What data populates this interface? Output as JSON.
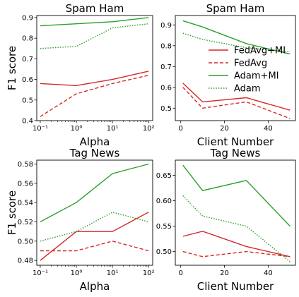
{
  "colors": {
    "red": "#d62728",
    "green": "#2ca02c"
  },
  "legend": {
    "placement": "right, inside top-right panel",
    "entries": [
      {
        "label": "FedAvg+MI",
        "color": "#d62728",
        "style": "solid"
      },
      {
        "label": "FedAvg",
        "color": "#d62728",
        "style": "dashed"
      },
      {
        "label": "Adam+MI",
        "color": "#2ca02c",
        "style": "solid"
      },
      {
        "label": "Adam",
        "color": "#2ca02c",
        "style": "dotted"
      }
    ]
  },
  "chart_data": [
    {
      "type": "line",
      "title": "Spam Ham",
      "xlabel": "Alpha",
      "ylabel": "F1 score",
      "xscale": "log",
      "xlim": [
        0.08,
        130
      ],
      "ylim": [
        0.4,
        0.91
      ],
      "xticks": [
        0.1,
        1,
        10,
        100
      ],
      "xtick_labels": [
        "10⁻¹",
        "10⁰",
        "10¹",
        "10²"
      ],
      "yticks": [
        0.4,
        0.5,
        0.6,
        0.7,
        0.8,
        0.9
      ],
      "ytick_labels": [
        "0.4",
        "0.5",
        "0.6",
        "0.7",
        "0.8",
        "0.9"
      ],
      "x": [
        0.1,
        1,
        10,
        100
      ],
      "series": [
        {
          "name": "FedAvg+MI",
          "values": [
            0.58,
            0.57,
            0.6,
            0.64
          ]
        },
        {
          "name": "FedAvg",
          "values": [
            0.42,
            0.53,
            0.58,
            0.62
          ]
        },
        {
          "name": "Adam+MI",
          "values": [
            0.86,
            0.87,
            0.88,
            0.9
          ]
        },
        {
          "name": "Adam",
          "values": [
            0.75,
            0.76,
            0.85,
            0.87
          ]
        }
      ]
    },
    {
      "type": "line",
      "title": "Spam Ham",
      "xlabel": "Client Number",
      "ylabel": "",
      "xscale": "linear",
      "xlim": [
        -2.5,
        52.5
      ],
      "ylim": [
        0.44,
        0.945
      ],
      "xticks": [
        0,
        20,
        40
      ],
      "xtick_labels": [
        "0",
        "20",
        "40"
      ],
      "yticks": [
        0.5,
        0.6,
        0.7,
        0.8,
        0.9
      ],
      "ytick_labels": [
        "0.5",
        "0.6",
        "0.7",
        "0.8",
        "0.9"
      ],
      "x": [
        1,
        10,
        30,
        50
      ],
      "series": [
        {
          "name": "FedAvg+MI",
          "values": [
            0.62,
            0.53,
            0.55,
            0.49
          ]
        },
        {
          "name": "FedAvg",
          "values": [
            0.6,
            0.5,
            0.53,
            0.45
          ]
        },
        {
          "name": "Adam+MI",
          "values": [
            0.92,
            0.89,
            0.81,
            0.76
          ]
        },
        {
          "name": "Adam",
          "values": [
            0.86,
            0.83,
            0.79,
            0.77
          ]
        }
      ]
    },
    {
      "type": "line",
      "title": "Tag News",
      "xlabel": "Alpha",
      "ylabel": "F1 score",
      "xscale": "log",
      "xlim": [
        0.08,
        130
      ],
      "ylim": [
        0.475,
        0.584
      ],
      "xticks": [
        0.1,
        1,
        10,
        100
      ],
      "xtick_labels": [
        "10⁻¹",
        "10⁰",
        "10¹",
        "10²"
      ],
      "yticks": [
        0.48,
        0.5,
        0.52,
        0.54,
        0.56,
        0.58
      ],
      "ytick_labels": [
        "0.48",
        "0.50",
        "0.52",
        "0.54",
        "0.56",
        "0.58"
      ],
      "x": [
        0.1,
        1,
        10,
        100
      ],
      "series": [
        {
          "name": "FedAvg+MI",
          "values": [
            0.48,
            0.51,
            0.51,
            0.53
          ]
        },
        {
          "name": "FedAvg",
          "values": [
            0.49,
            0.49,
            0.5,
            0.49
          ]
        },
        {
          "name": "Adam+MI",
          "values": [
            0.52,
            0.54,
            0.57,
            0.58
          ]
        },
        {
          "name": "Adam",
          "values": [
            0.5,
            0.51,
            0.53,
            0.52
          ]
        }
      ]
    },
    {
      "type": "line",
      "title": "Tag News",
      "xlabel": "Client Number",
      "ylabel": "",
      "xscale": "linear",
      "xlim": [
        -2.5,
        52.5
      ],
      "ylim": [
        0.473,
        0.68
      ],
      "xticks": [
        0,
        20,
        40
      ],
      "xtick_labels": [
        "0",
        "20",
        "40"
      ],
      "yticks": [
        0.5,
        0.55,
        0.6,
        0.65
      ],
      "ytick_labels": [
        "0.50",
        "0.55",
        "0.60",
        "0.65"
      ],
      "x": [
        1,
        10,
        30,
        50
      ],
      "series": [
        {
          "name": "FedAvg+MI",
          "values": [
            0.53,
            0.54,
            0.51,
            0.49
          ]
        },
        {
          "name": "FedAvg",
          "values": [
            0.5,
            0.49,
            0.5,
            0.49
          ]
        },
        {
          "name": "Adam+MI",
          "values": [
            0.67,
            0.62,
            0.64,
            0.55
          ]
        },
        {
          "name": "Adam",
          "values": [
            0.61,
            0.57,
            0.55,
            0.48
          ]
        }
      ]
    }
  ]
}
